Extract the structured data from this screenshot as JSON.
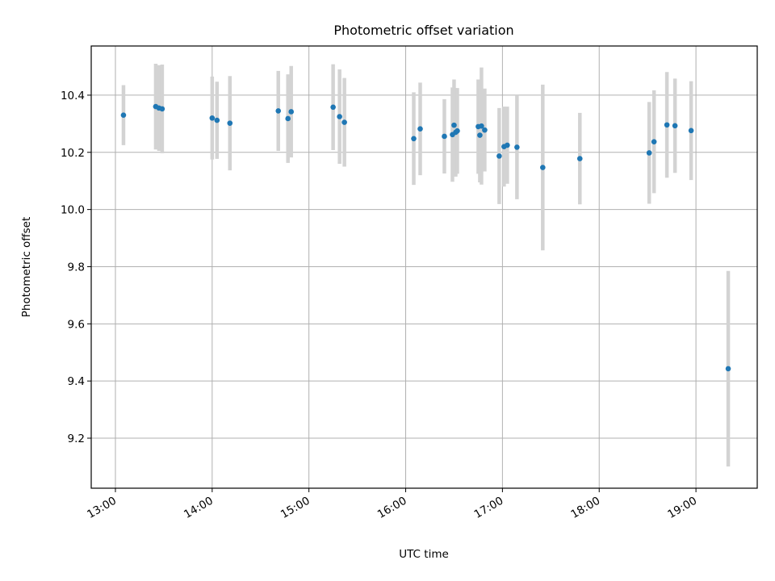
{
  "chart_data": {
    "type": "scatter",
    "title": "Photometric offset variation",
    "xlabel": "UTC time",
    "ylabel": "Photometric offset",
    "x_unit": "UTC time of day",
    "xlim": [
      "12:45",
      "19:38"
    ],
    "ylim": [
      9.025,
      10.572
    ],
    "x_ticks": [
      "13:00",
      "14:00",
      "15:00",
      "16:00",
      "17:00",
      "18:00",
      "19:00"
    ],
    "y_ticks": [
      9.2,
      9.4,
      9.6,
      9.8,
      10.0,
      10.2,
      10.4
    ],
    "y_tick_labels": [
      "9.2",
      "9.4",
      "9.6",
      "9.8",
      "10.0",
      "10.2",
      "10.4"
    ],
    "grid": true,
    "marker_color": "#1f77b4",
    "errorbar_color": "#d3d3d3",
    "series": [
      {
        "points": [
          {
            "x": "13:05",
            "y": 10.33,
            "err": 0.105
          },
          {
            "x": "13:25",
            "y": 10.36,
            "err": 0.15
          },
          {
            "x": "13:27",
            "y": 10.355,
            "err": 0.15
          },
          {
            "x": "13:29",
            "y": 10.352,
            "err": 0.155
          },
          {
            "x": "14:00",
            "y": 10.32,
            "err": 0.145
          },
          {
            "x": "14:03",
            "y": 10.312,
            "err": 0.135
          },
          {
            "x": "14:11",
            "y": 10.302,
            "err": 0.165
          },
          {
            "x": "14:41",
            "y": 10.345,
            "err": 0.14
          },
          {
            "x": "14:47",
            "y": 10.318,
            "err": 0.155
          },
          {
            "x": "14:49",
            "y": 10.342,
            "err": 0.16
          },
          {
            "x": "15:15",
            "y": 10.358,
            "err": 0.15
          },
          {
            "x": "15:19",
            "y": 10.325,
            "err": 0.165
          },
          {
            "x": "15:22",
            "y": 10.305,
            "err": 0.155
          },
          {
            "x": "16:05",
            "y": 10.248,
            "err": 0.162
          },
          {
            "x": "16:09",
            "y": 10.282,
            "err": 0.162
          },
          {
            "x": "16:24",
            "y": 10.256,
            "err": 0.13
          },
          {
            "x": "16:29",
            "y": 10.262,
            "err": 0.165
          },
          {
            "x": "16:30",
            "y": 10.295,
            "err": 0.16
          },
          {
            "x": "16:31",
            "y": 10.27,
            "err": 0.155
          },
          {
            "x": "16:32",
            "y": 10.275,
            "err": 0.15
          },
          {
            "x": "16:45",
            "y": 10.29,
            "err": 0.165
          },
          {
            "x": "16:46",
            "y": 10.26,
            "err": 0.165
          },
          {
            "x": "16:47",
            "y": 10.292,
            "err": 0.205
          },
          {
            "x": "16:49",
            "y": 10.278,
            "err": 0.145
          },
          {
            "x": "16:58",
            "y": 10.187,
            "err": 0.168
          },
          {
            "x": "17:01",
            "y": 10.22,
            "err": 0.14
          },
          {
            "x": "17:03",
            "y": 10.225,
            "err": 0.135
          },
          {
            "x": "17:09",
            "y": 10.218,
            "err": 0.182
          },
          {
            "x": "17:25",
            "y": 10.147,
            "err": 0.29
          },
          {
            "x": "17:48",
            "y": 10.178,
            "err": 0.16
          },
          {
            "x": "18:31",
            "y": 10.198,
            "err": 0.178
          },
          {
            "x": "18:34",
            "y": 10.237,
            "err": 0.18
          },
          {
            "x": "18:42",
            "y": 10.296,
            "err": 0.185
          },
          {
            "x": "18:47",
            "y": 10.293,
            "err": 0.165
          },
          {
            "x": "18:57",
            "y": 10.276,
            "err": 0.173
          },
          {
            "x": "19:20",
            "y": 9.443,
            "err": 0.342
          }
        ]
      }
    ]
  }
}
